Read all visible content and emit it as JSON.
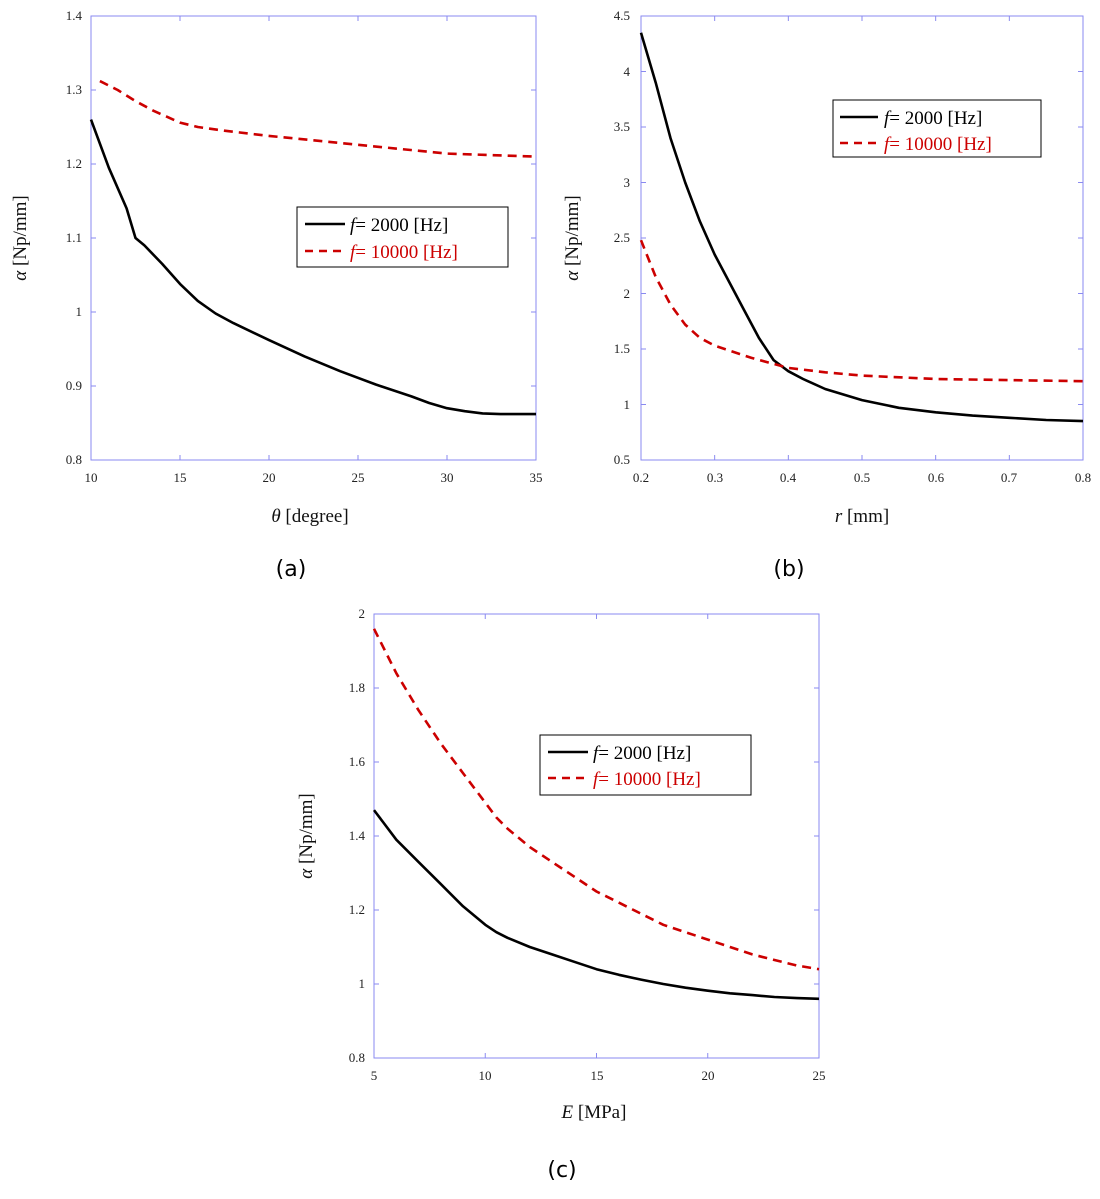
{
  "colors": {
    "frame": "#8a8af0",
    "series_2000": "#000000",
    "series_10000": "#cc0000"
  },
  "chart_data": [
    {
      "type": "line",
      "caption": "(a)",
      "xlabel": {
        "sym": "θ",
        "unit": " [degree]"
      },
      "ylabel": {
        "sym": "α",
        "unit": " [Np/mm]"
      },
      "xlim": [
        10,
        35
      ],
      "ylim": [
        0.8,
        1.4
      ],
      "xticks": [
        10,
        15,
        20,
        25,
        30,
        35
      ],
      "yticks": [
        0.8,
        0.9,
        1,
        1.1,
        1.2,
        1.3,
        1.4
      ],
      "xtick_labels": [
        "10",
        "15",
        "20",
        "25",
        "30",
        "35"
      ],
      "ytick_labels": [
        "0.8",
        "0.9",
        "1",
        "1.1",
        "1.2",
        "1.3",
        "1.4"
      ],
      "grid": false,
      "legend_position": "center-right",
      "series": [
        {
          "name": {
            "pre": "f",
            "post": "= 2000 [Hz]"
          },
          "style": "solid",
          "color": "#000000",
          "x": [
            10,
            11,
            12,
            12.5,
            13,
            14,
            15,
            16,
            17,
            18,
            20,
            22,
            24,
            26,
            28,
            29,
            30,
            31,
            32,
            33,
            35
          ],
          "y": [
            1.26,
            1.195,
            1.14,
            1.1,
            1.09,
            1.065,
            1.038,
            1.015,
            0.998,
            0.985,
            0.962,
            0.94,
            0.92,
            0.902,
            0.886,
            0.877,
            0.87,
            0.866,
            0.863,
            0.862,
            0.862
          ]
        },
        {
          "name": {
            "pre": "f",
            "post": "= 10000 [Hz]"
          },
          "style": "dashed",
          "color": "#cc0000",
          "x": [
            10.5,
            11.5,
            12.5,
            13.5,
            15,
            16,
            17.5,
            20,
            22.5,
            25,
            27.5,
            30,
            32.5,
            35
          ],
          "y": [
            1.312,
            1.3,
            1.285,
            1.272,
            1.256,
            1.25,
            1.245,
            1.238,
            1.232,
            1.226,
            1.22,
            1.214,
            1.212,
            1.21
          ]
        }
      ]
    },
    {
      "type": "line",
      "caption": "(b)",
      "xlabel": {
        "sym": "r",
        "unit": " [mm]"
      },
      "ylabel": {
        "sym": "α",
        "unit": " [Np/mm]"
      },
      "xlim": [
        0.2,
        0.8
      ],
      "ylim": [
        0.5,
        4.5
      ],
      "xticks": [
        0.2,
        0.3,
        0.4,
        0.5,
        0.6,
        0.7,
        0.8
      ],
      "yticks": [
        0.5,
        1,
        1.5,
        2,
        2.5,
        3,
        3.5,
        4,
        4.5
      ],
      "xtick_labels": [
        "0.2",
        "0.3",
        "0.4",
        "0.5",
        "0.6",
        "0.7",
        "0.8"
      ],
      "ytick_labels": [
        "0.5",
        "1",
        "1.5",
        "2",
        "2.5",
        "3",
        "3.5",
        "4",
        "4.5"
      ],
      "grid": false,
      "legend_position": "top-right",
      "series": [
        {
          "name": {
            "pre": "f",
            "post": "= 2000 [Hz]"
          },
          "style": "solid",
          "color": "#000000",
          "x": [
            0.2,
            0.22,
            0.24,
            0.26,
            0.28,
            0.3,
            0.32,
            0.34,
            0.36,
            0.38,
            0.4,
            0.42,
            0.45,
            0.5,
            0.55,
            0.6,
            0.65,
            0.7,
            0.75,
            0.8
          ],
          "y": [
            4.35,
            3.9,
            3.4,
            3.0,
            2.65,
            2.35,
            2.1,
            1.85,
            1.6,
            1.4,
            1.3,
            1.23,
            1.14,
            1.04,
            0.97,
            0.93,
            0.9,
            0.88,
            0.86,
            0.85
          ]
        },
        {
          "name": {
            "pre": "f",
            "post": "= 10000 [Hz]"
          },
          "style": "dashed",
          "color": "#cc0000",
          "x": [
            0.2,
            0.22,
            0.24,
            0.26,
            0.28,
            0.3,
            0.35,
            0.4,
            0.45,
            0.5,
            0.6,
            0.7,
            0.8
          ],
          "y": [
            2.48,
            2.15,
            1.9,
            1.72,
            1.6,
            1.53,
            1.42,
            1.33,
            1.29,
            1.26,
            1.23,
            1.22,
            1.21
          ]
        }
      ]
    },
    {
      "type": "line",
      "caption": "(c)",
      "xlabel": {
        "sym": "E",
        "unit": " [MPa]"
      },
      "ylabel": {
        "sym": "α",
        "unit": " [Np/mm]"
      },
      "xlim": [
        5,
        25
      ],
      "ylim": [
        0.8,
        2
      ],
      "xticks": [
        5,
        10,
        15,
        20,
        25
      ],
      "yticks": [
        0.8,
        1,
        1.2,
        1.4,
        1.6,
        1.8,
        2
      ],
      "xtick_labels": [
        "5",
        "10",
        "15",
        "20",
        "25"
      ],
      "ytick_labels": [
        "0.8",
        "1",
        "1.2",
        "1.4",
        "1.6",
        "1.8",
        "2"
      ],
      "grid": false,
      "legend_position": "upper-right",
      "series": [
        {
          "name": {
            "pre": "f",
            "post": "= 2000 [Hz]"
          },
          "style": "solid",
          "color": "#000000",
          "x": [
            5,
            6,
            7,
            8,
            9,
            10,
            10.5,
            11,
            12,
            13,
            14,
            15,
            16,
            17,
            18,
            19,
            20,
            21,
            22,
            23,
            24,
            25
          ],
          "y": [
            1.47,
            1.39,
            1.33,
            1.27,
            1.21,
            1.16,
            1.14,
            1.125,
            1.1,
            1.08,
            1.06,
            1.04,
            1.025,
            1.012,
            1.0,
            0.99,
            0.982,
            0.975,
            0.97,
            0.965,
            0.962,
            0.96
          ]
        },
        {
          "name": {
            "pre": "f",
            "post": "= 10000 [Hz]"
          },
          "style": "dashed",
          "color": "#cc0000",
          "x": [
            5,
            6,
            7,
            8,
            9,
            10,
            10.5,
            11,
            12,
            13,
            14,
            15,
            16,
            17,
            18,
            19,
            20,
            21,
            22,
            23,
            24,
            25
          ],
          "y": [
            1.96,
            1.84,
            1.74,
            1.65,
            1.57,
            1.49,
            1.45,
            1.42,
            1.37,
            1.33,
            1.29,
            1.25,
            1.22,
            1.19,
            1.16,
            1.14,
            1.12,
            1.1,
            1.08,
            1.065,
            1.05,
            1.04
          ]
        }
      ]
    }
  ]
}
